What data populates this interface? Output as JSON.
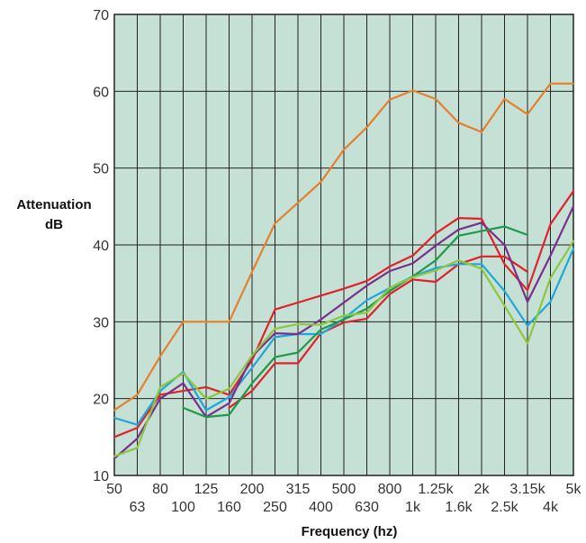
{
  "chart_data": {
    "type": "line",
    "title": "",
    "xlabel": "Frequency (hz)",
    "ylabel_line1": "Attenuation",
    "ylabel_line2": "dB",
    "categories": [
      "50",
      "63",
      "80",
      "100",
      "125",
      "160",
      "200",
      "250",
      "315",
      "400",
      "500",
      "630",
      "800",
      "1k",
      "1.25k",
      "1.6k",
      "2k",
      "2.5k",
      "3.15k",
      "4k",
      "5k"
    ],
    "y_ticks": [
      10,
      20,
      30,
      40,
      50,
      60,
      70
    ],
    "ylim": [
      10,
      70
    ],
    "grid": true,
    "legend": "none",
    "plot_background": "#c5e0d4",
    "grid_color": "#222222",
    "series": [
      {
        "color": "#e87f2a",
        "values": [
          18.5,
          20.5,
          25.5,
          30,
          30,
          30,
          36.5,
          42.8,
          45.5,
          48.2,
          52.4,
          55.3,
          58.9,
          60.1,
          59,
          55.9,
          54.7,
          59,
          57,
          61,
          61
        ]
      },
      {
        "color": "#e0222a",
        "values": [
          15,
          16.2,
          20.5,
          21,
          21.5,
          20.5,
          25,
          31.6,
          32.5,
          33.4,
          34.3,
          35.3,
          37.2,
          38.6,
          41.5,
          43.5,
          43.4,
          37.5,
          34.1,
          42.7,
          47
        ]
      },
      {
        "color": "#e0222a",
        "values": [
          null,
          null,
          null,
          null,
          null,
          18.8,
          21,
          24.6,
          24.6,
          28.5,
          29.9,
          30.4,
          33.6,
          35.5,
          35.2,
          37.5,
          38.5,
          38.5,
          36.5,
          null,
          null
        ]
      },
      {
        "color": "#1fa7dc",
        "values": [
          17.5,
          16.6,
          21,
          23.5,
          18.5,
          20.2,
          24,
          28,
          28.4,
          28.4,
          30.4,
          32.8,
          34.4,
          35.9,
          37,
          37.5,
          37.5,
          34,
          29.5,
          32.6,
          39.5
        ]
      },
      {
        "color": "#7a2f8c",
        "values": [
          12.2,
          14.8,
          20,
          22,
          17.6,
          19.4,
          25.5,
          28.5,
          28.4,
          30.3,
          32.5,
          34.7,
          36.6,
          37.6,
          39.9,
          42,
          42.9,
          40,
          32.6,
          38.6,
          45
        ]
      },
      {
        "color": "#1f9a4a",
        "values": [
          null,
          null,
          null,
          18.8,
          17.6,
          17.9,
          22,
          25.4,
          26,
          29,
          30.3,
          31.7,
          34,
          35.9,
          38,
          41.2,
          41.8,
          42.4,
          41.3,
          null,
          null
        ]
      },
      {
        "color": "#8dc63f",
        "values": [
          12.5,
          13.6,
          21.5,
          23.3,
          20,
          21.3,
          25.6,
          29.1,
          29.7,
          29.6,
          30.8,
          31.2,
          34.4,
          35.8,
          36.7,
          38,
          36.9,
          32.1,
          27.2,
          35.7,
          40.5
        ]
      }
    ]
  }
}
